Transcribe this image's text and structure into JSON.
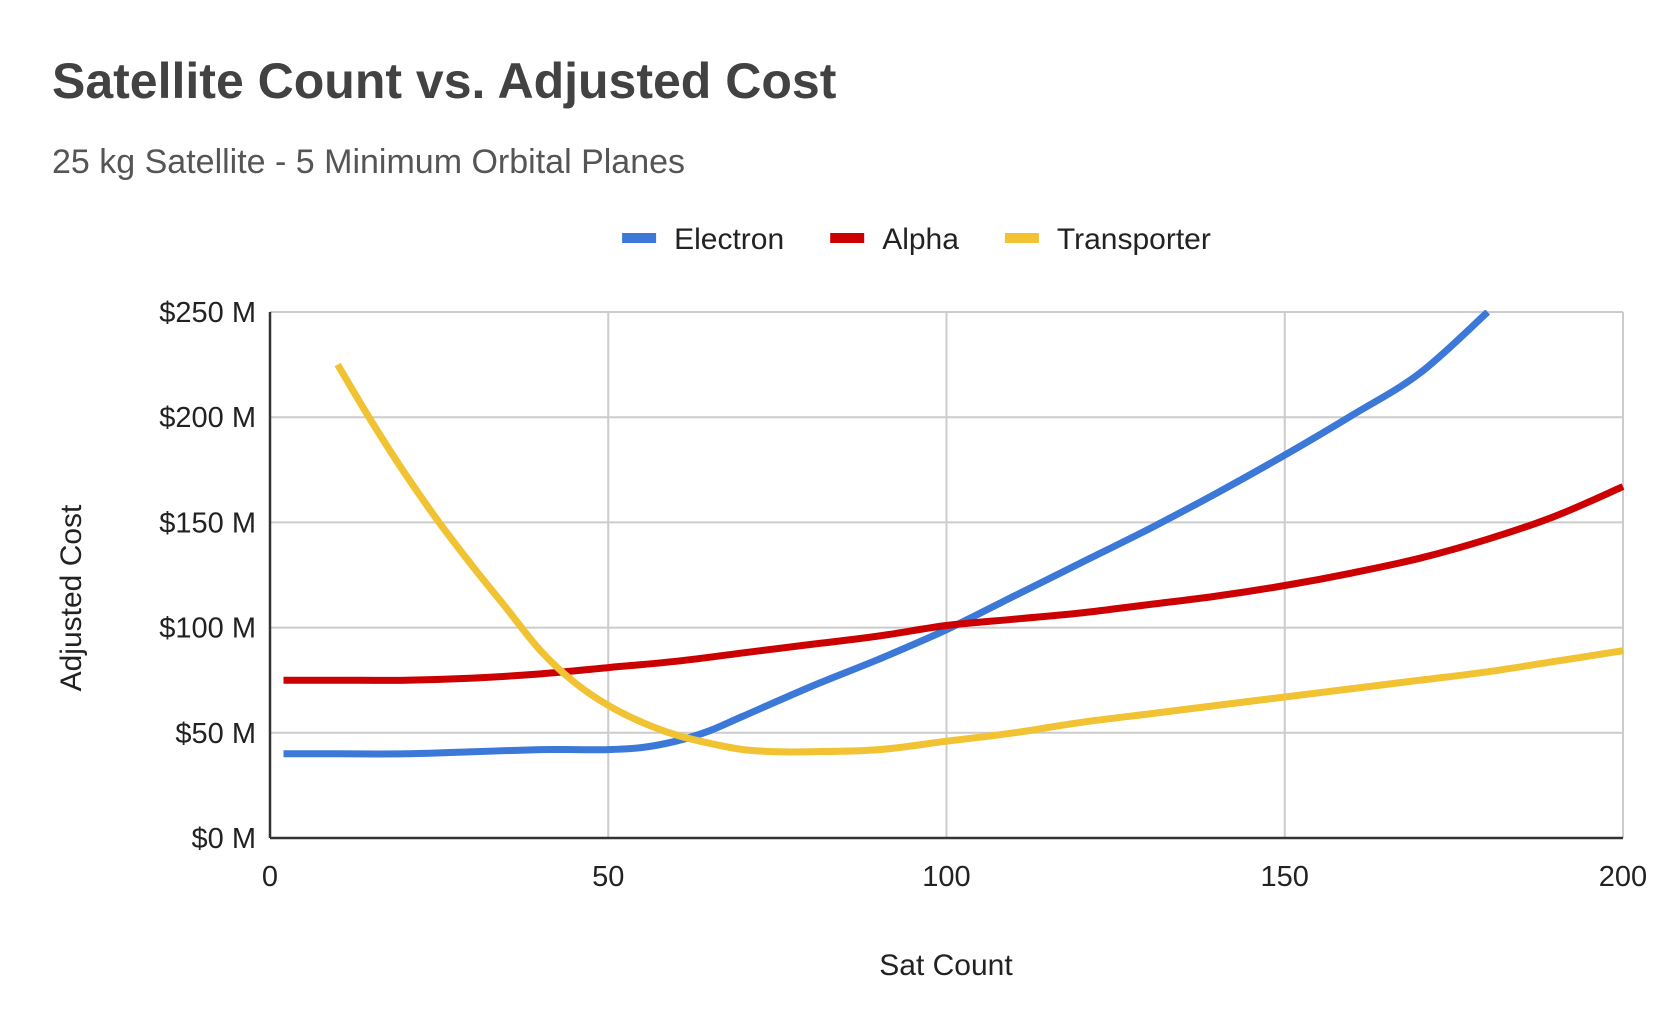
{
  "chart_data": {
    "type": "line",
    "title": "Satellite Count vs. Adjusted Cost",
    "subtitle": "25 kg Satellite - 5 Minimum Orbital Planes",
    "xlabel": "Sat Count",
    "ylabel": "Adjusted Cost",
    "xlim": [
      0,
      200
    ],
    "ylim": [
      0,
      250
    ],
    "x_ticks": [
      0,
      50,
      100,
      150,
      200
    ],
    "x_tick_labels": [
      "0",
      "50",
      "100",
      "150",
      "200"
    ],
    "y_ticks": [
      0,
      50,
      100,
      150,
      200,
      250
    ],
    "y_tick_labels": [
      "$0 M",
      "$50 M",
      "$100 M",
      "$150 M",
      "$200 M",
      "$250 M"
    ],
    "grid": true,
    "legend_position": "top-center",
    "series": [
      {
        "name": "Electron",
        "color": "#3c78d8",
        "x": [
          2,
          10,
          20,
          30,
          40,
          45,
          50,
          55,
          60,
          65,
          70,
          80,
          90,
          100,
          110,
          120,
          130,
          140,
          150,
          160,
          170,
          180
        ],
        "values": [
          40,
          40,
          40,
          41,
          42,
          42,
          42,
          43,
          46,
          51,
          58,
          72,
          85,
          99,
          115,
          131,
          147,
          164,
          182,
          201,
          221,
          250
        ]
      },
      {
        "name": "Alpha",
        "color": "#cc0000",
        "x": [
          2,
          10,
          20,
          30,
          40,
          50,
          60,
          70,
          80,
          90,
          100,
          110,
          120,
          130,
          140,
          150,
          160,
          170,
          180,
          190,
          200
        ],
        "values": [
          75,
          75,
          75,
          76,
          78,
          81,
          84,
          88,
          92,
          96,
          101,
          104,
          107,
          111,
          115,
          120,
          126,
          133,
          142,
          153,
          167
        ]
      },
      {
        "name": "Transporter",
        "color": "#f1c232",
        "x": [
          10,
          15,
          20,
          25,
          30,
          35,
          40,
          45,
          50,
          55,
          60,
          65,
          70,
          75,
          80,
          90,
          100,
          110,
          120,
          130,
          140,
          150,
          160,
          170,
          180,
          190,
          200
        ],
        "values": [
          225,
          198,
          173,
          150,
          129,
          109,
          89,
          74,
          63,
          55,
          49,
          45,
          42,
          41,
          41,
          42,
          46,
          50,
          55,
          59,
          63,
          67,
          71,
          75,
          79,
          84,
          89
        ]
      }
    ]
  }
}
